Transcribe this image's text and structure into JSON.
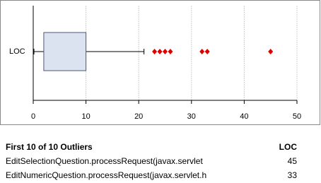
{
  "chart_data": {
    "type": "box",
    "categories": [
      "LOC"
    ],
    "whisker_low": 0,
    "q1": 2,
    "q3": 10,
    "whisker_high": 21,
    "outliers": [
      23,
      24,
      25,
      26,
      32,
      33,
      45
    ],
    "color": "#dce3f0",
    "edge_color": "#4a5a7a",
    "outlier_color": "#e00000",
    "xlim": [
      0,
      50
    ],
    "xticks": [
      0,
      10,
      20,
      30,
      40,
      50
    ],
    "grid": true
  },
  "table": {
    "header": [
      "First 10 of 10 Outliers",
      "LOC"
    ],
    "rows": [
      [
        "EditSelectionQuestion.processRequest(javax.servlet",
        "45"
      ],
      [
        "EditNumericQuestion.processRequest(javax.servlet.h",
        "33"
      ]
    ]
  }
}
